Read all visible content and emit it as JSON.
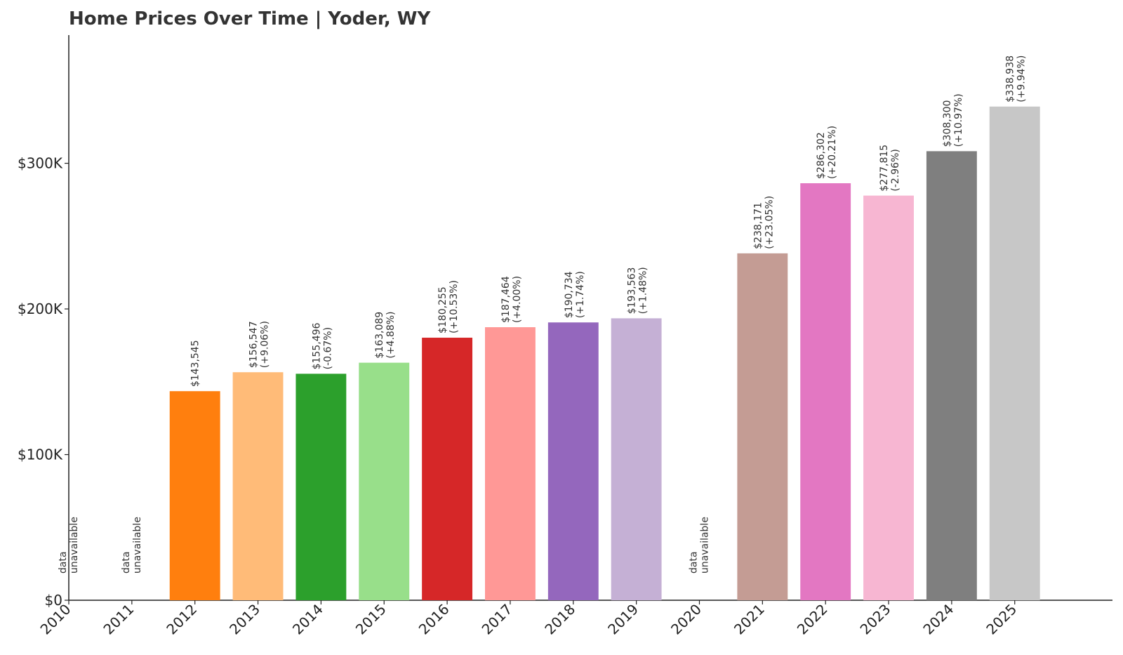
{
  "chart_data": {
    "type": "bar",
    "title": "Home Prices Over Time | Yoder, WY",
    "xlabel": "",
    "ylabel": "",
    "ylim": [
      0,
      388000
    ],
    "y_ticks": [
      {
        "value": 0,
        "label": "$0"
      },
      {
        "value": 100000,
        "label": "$100K"
      },
      {
        "value": 200000,
        "label": "$200K"
      },
      {
        "value": 300000,
        "label": "$300K"
      }
    ],
    "unavailable_text": [
      "data",
      "unavailable"
    ],
    "bars": [
      {
        "year": "2010",
        "value": null
      },
      {
        "year": "2011",
        "value": null
      },
      {
        "year": "2012",
        "value": 143545,
        "label": "$143,545",
        "change": "",
        "color": "#ff7f0e"
      },
      {
        "year": "2013",
        "value": 156547,
        "label": "$156,547",
        "change": "(+9.06%)",
        "color": "#ffbb78"
      },
      {
        "year": "2014",
        "value": 155496,
        "label": "$155,496",
        "change": "(-0.67%)",
        "color": "#2ca02c"
      },
      {
        "year": "2015",
        "value": 163089,
        "label": "$163,089",
        "change": "(+4.88%)",
        "color": "#98df8a"
      },
      {
        "year": "2016",
        "value": 180255,
        "label": "$180,255",
        "change": "(+10.53%)",
        "color": "#d62728"
      },
      {
        "year": "2017",
        "value": 187464,
        "label": "$187,464",
        "change": "(+4.00%)",
        "color": "#ff9896"
      },
      {
        "year": "2018",
        "value": 190734,
        "label": "$190,734",
        "change": "(+1.74%)",
        "color": "#9467bd"
      },
      {
        "year": "2019",
        "value": 193563,
        "label": "$193,563",
        "change": "(+1.48%)",
        "color": "#c5b0d5"
      },
      {
        "year": "2020",
        "value": null
      },
      {
        "year": "2021",
        "value": 238171,
        "label": "$238,171",
        "change": "(+23.05%)",
        "color": "#c49c94"
      },
      {
        "year": "2022",
        "value": 286302,
        "label": "$286,302",
        "change": "(+20.21%)",
        "color": "#e377c2"
      },
      {
        "year": "2023",
        "value": 277815,
        "label": "$277,815",
        "change": "(-2.96%)",
        "color": "#f7b6d2"
      },
      {
        "year": "2024",
        "value": 308300,
        "label": "$308,300",
        "change": "(+10.97%)",
        "color": "#7f7f7f"
      },
      {
        "year": "2025",
        "value": 338938,
        "label": "$338,938",
        "change": "(+9.94%)",
        "color": "#c7c7c7"
      }
    ]
  }
}
